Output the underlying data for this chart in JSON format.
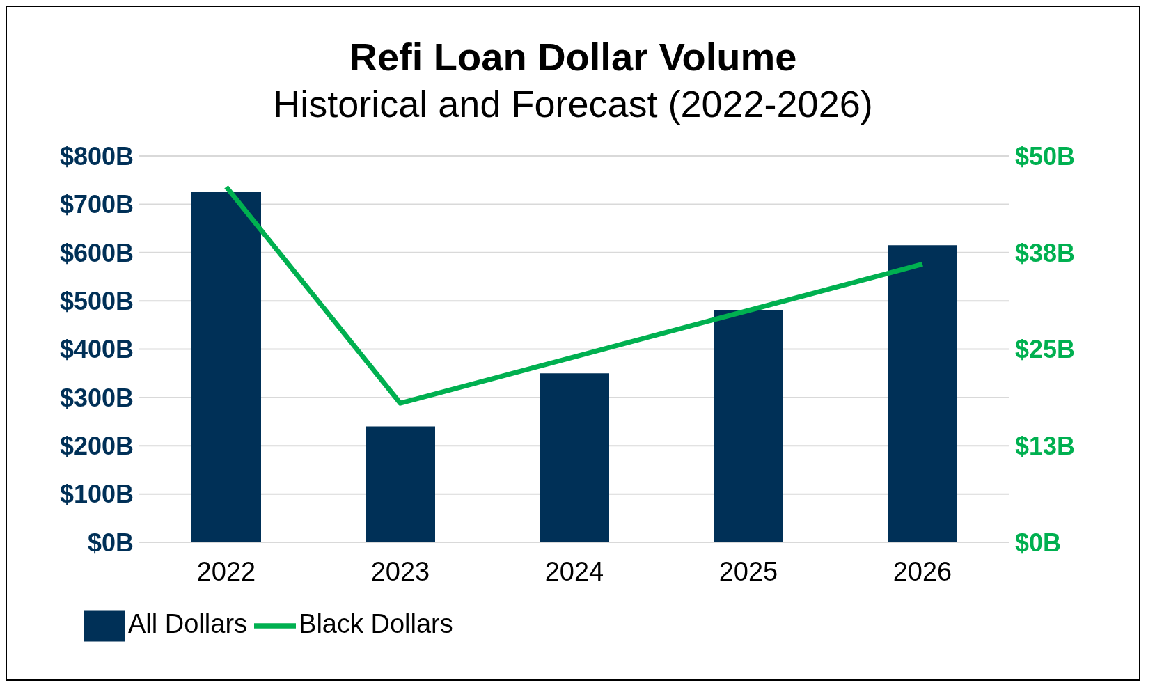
{
  "chart_data": {
    "type": "bar",
    "title": "Refi Loan Dollar Volume",
    "subtitle": "Historical and Forecast (2022-2026)",
    "categories": [
      "2022",
      "2023",
      "2024",
      "2025",
      "2026"
    ],
    "series": [
      {
        "name": "All Dollars",
        "color": "#003057",
        "values": [
          725,
          240,
          350,
          480,
          615
        ]
      },
      {
        "name": "Black Dollars",
        "type": "line",
        "axis": "y2",
        "color": "#00b050",
        "values": [
          46,
          18,
          24,
          30,
          36
        ]
      }
    ],
    "ylim": [
      0,
      800
    ],
    "yticks": [
      {
        "value": 0,
        "label": "$0B"
      },
      {
        "value": 100,
        "label": "$100B"
      },
      {
        "value": 200,
        "label": "$200B"
      },
      {
        "value": 300,
        "label": "$300B"
      },
      {
        "value": 400,
        "label": "$400B"
      },
      {
        "value": 500,
        "label": "$500B"
      },
      {
        "value": 600,
        "label": "$600B"
      },
      {
        "value": 700,
        "label": "$700B"
      },
      {
        "value": 800,
        "label": "$800B"
      }
    ],
    "y2lim": [
      0,
      50
    ],
    "y2ticks": [
      {
        "value": 0,
        "label": "$0B"
      },
      {
        "value": 12.5,
        "label": "$13B"
      },
      {
        "value": 25,
        "label": "$25B"
      },
      {
        "value": 37.5,
        "label": "$38B"
      },
      {
        "value": 50,
        "label": "$50B"
      }
    ],
    "grid": "y",
    "legend": "bottom left",
    "marker": "none",
    "line_style": "solid"
  }
}
